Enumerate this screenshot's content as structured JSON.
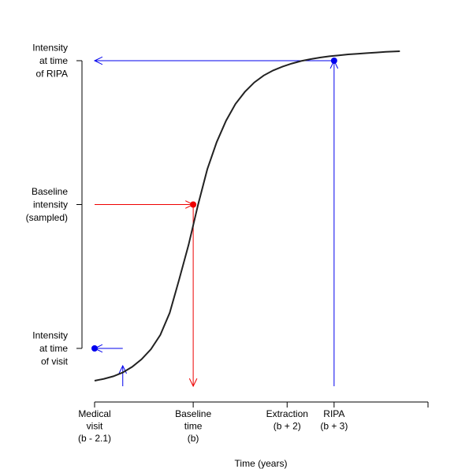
{
  "chart_data": {
    "type": "line",
    "title": "",
    "xlabel": "Time (years)",
    "ylabel": "",
    "grid": false,
    "legend": "none",
    "xlim": [
      -2.1,
      5.0
    ],
    "ylim": [
      -0.1,
      1.1
    ],
    "x_ticks": [
      {
        "value": -2.1,
        "lines": [
          "Medical",
          "visit",
          "(b - 2.1)"
        ]
      },
      {
        "value": 0,
        "lines": [
          "Baseline",
          "time",
          "(b)"
        ]
      },
      {
        "value": 2,
        "lines": [
          "Extraction",
          "(b + 2)"
        ]
      },
      {
        "value": 3,
        "lines": [
          "RIPA",
          "(b + 3)"
        ]
      }
    ],
    "y_ticks": [
      {
        "value": 0.1,
        "lines": [
          "Intensity",
          "at time",
          "of visit"
        ]
      },
      {
        "value": 0.5,
        "lines": [
          "Baseline",
          "intensity",
          "(sampled)"
        ]
      },
      {
        "value": 0.9,
        "lines": [
          "Intensity",
          "at time",
          "of RIPA"
        ]
      }
    ],
    "series": [
      {
        "color": "#222222",
        "x": [
          -2.1,
          -1.9,
          -1.7,
          -1.5,
          -1.3,
          -1.1,
          -0.9,
          -0.7,
          -0.5,
          -0.3,
          -0.1,
          0.1,
          0.3,
          0.5,
          0.7,
          0.9,
          1.1,
          1.3,
          1.5,
          1.7,
          1.9,
          2.1,
          2.3,
          2.5,
          2.7,
          2.9,
          3.1,
          3.3,
          3.5,
          3.7,
          3.9,
          4.1,
          4.4
        ],
        "y": [
          0.0,
          0.006,
          0.014,
          0.026,
          0.044,
          0.068,
          0.1,
          0.145,
          0.215,
          0.32,
          0.43,
          0.556,
          0.67,
          0.756,
          0.824,
          0.877,
          0.915,
          0.945,
          0.967,
          0.983,
          0.995,
          1.005,
          1.013,
          1.019,
          1.024,
          1.028,
          1.031,
          1.034,
          1.036,
          1.038,
          1.04,
          1.042,
          1.044
        ]
      }
    ],
    "points": [
      {
        "x": -2.1,
        "y": 0.1,
        "color": "#0000ee"
      },
      {
        "x": 0,
        "y": 0.5,
        "color": "#ee0000"
      },
      {
        "x": 3,
        "y": 0.9,
        "color": "#0000ee"
      }
    ],
    "arrows": [
      {
        "from": [
          -1.5,
          0.1
        ],
        "to": [
          -2.1,
          0.1
        ],
        "color": "#0000ee"
      },
      {
        "from": [
          -1.5,
          0.02
        ],
        "to": [
          -1.5,
          0.1
        ],
        "color": "#0000ee"
      },
      {
        "from": [
          -2.1,
          0.5
        ],
        "to": [
          0,
          0.5
        ],
        "color": "#ee0000"
      },
      {
        "from": [
          0,
          0.5
        ],
        "to": [
          0,
          0.02
        ],
        "color": "#ee0000"
      },
      {
        "from": [
          3,
          0.9
        ],
        "to": [
          -2.1,
          0.9
        ],
        "color": "#0000ee"
      },
      {
        "from": [
          3,
          0.02
        ],
        "to": [
          3,
          0.9
        ],
        "color": "#0000ee"
      }
    ]
  }
}
